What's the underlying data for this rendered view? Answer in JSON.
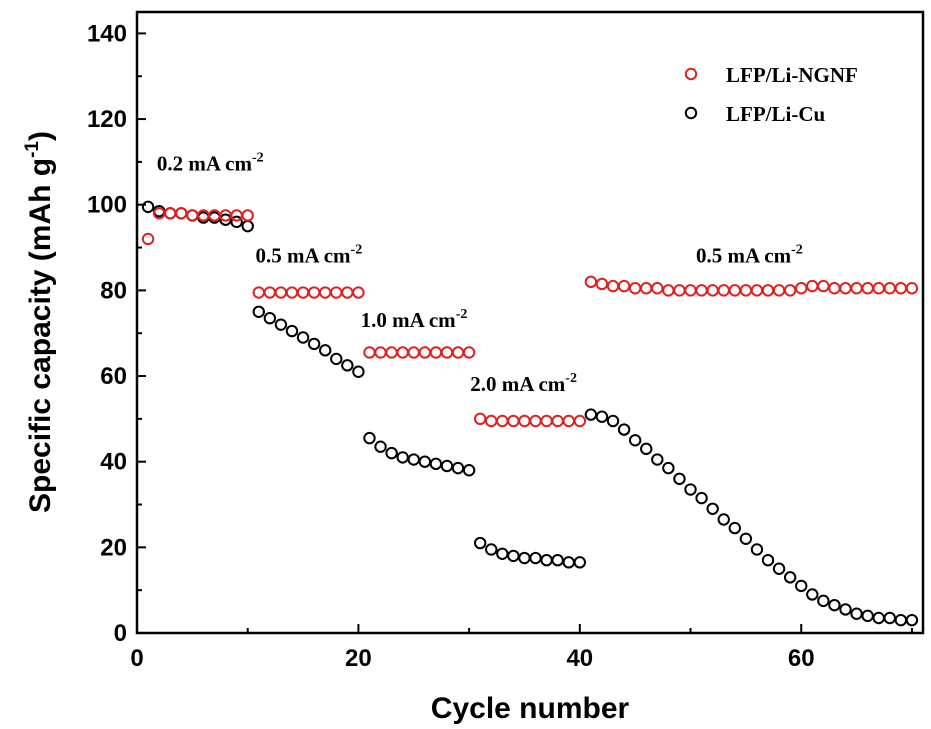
{
  "chart_data": {
    "type": "scatter",
    "title": "",
    "xlabel": "Cycle number",
    "ylabel_main": "Specific capacity (mAh g",
    "ylabel_sup": "-1",
    "ylabel_close": ")",
    "xlim": [
      0,
      71
    ],
    "ylim": [
      0,
      145
    ],
    "xticks": [
      0,
      20,
      40,
      60
    ],
    "yticks": [
      0,
      20,
      40,
      60,
      80,
      100,
      120,
      140
    ],
    "grid": false,
    "legend_position": "top-right",
    "series": [
      {
        "name": "LFP/Li-NGNF",
        "color": "#e02020",
        "marker": "open-circle",
        "x": [
          1,
          2,
          3,
          4,
          5,
          6,
          7,
          8,
          9,
          10,
          11,
          12,
          13,
          14,
          15,
          16,
          17,
          18,
          19,
          20,
          21,
          22,
          23,
          24,
          25,
          26,
          27,
          28,
          29,
          30,
          31,
          32,
          33,
          34,
          35,
          36,
          37,
          38,
          39,
          40,
          41,
          42,
          43,
          44,
          45,
          46,
          47,
          48,
          49,
          50,
          51,
          52,
          53,
          54,
          55,
          56,
          57,
          58,
          59,
          60,
          61,
          62,
          63,
          64,
          65,
          66,
          67,
          68,
          69,
          70
        ],
        "y": [
          92,
          98,
          98,
          98,
          97.5,
          97.5,
          97.5,
          97.5,
          97.5,
          97.5,
          79.5,
          79.5,
          79.5,
          79.5,
          79.5,
          79.5,
          79.5,
          79.5,
          79.5,
          79.5,
          65.5,
          65.5,
          65.5,
          65.5,
          65.5,
          65.5,
          65.5,
          65.5,
          65.5,
          65.5,
          50,
          49.5,
          49.5,
          49.5,
          49.5,
          49.5,
          49.5,
          49.5,
          49.5,
          49.5,
          82,
          81.5,
          81,
          81,
          80.5,
          80.5,
          80.5,
          80,
          80,
          80,
          80,
          80,
          80,
          80,
          80,
          80,
          80,
          80,
          80,
          80.5,
          81,
          81,
          80.5,
          80.5,
          80.5,
          80.5,
          80.5,
          80.5,
          80.5,
          80.5
        ]
      },
      {
        "name": "LFP/Li-Cu",
        "color": "#000000",
        "marker": "open-circle",
        "x": [
          1,
          2,
          3,
          4,
          5,
          6,
          7,
          8,
          9,
          10,
          11,
          12,
          13,
          14,
          15,
          16,
          17,
          18,
          19,
          20,
          21,
          22,
          23,
          24,
          25,
          26,
          27,
          28,
          29,
          30,
          31,
          32,
          33,
          34,
          35,
          36,
          37,
          38,
          39,
          40,
          41,
          42,
          43,
          44,
          45,
          46,
          47,
          48,
          49,
          50,
          51,
          52,
          53,
          54,
          55,
          56,
          57,
          58,
          59,
          60,
          61,
          62,
          63,
          64,
          65,
          66,
          67,
          68,
          69,
          70
        ],
        "y": [
          99.5,
          98.5,
          98,
          98,
          97.5,
          97,
          97,
          96.5,
          96,
          95,
          75,
          73.5,
          72,
          70.5,
          69,
          67.5,
          66,
          64,
          62.5,
          61,
          45.5,
          43.5,
          42,
          41,
          40.5,
          40,
          39.5,
          39,
          38.5,
          38,
          21,
          19.5,
          18.5,
          18,
          17.5,
          17.5,
          17,
          17,
          16.5,
          16.5,
          51,
          50.5,
          49.5,
          47.5,
          45,
          43,
          40.5,
          38.5,
          36,
          33.5,
          31.5,
          29,
          26.5,
          24.5,
          22,
          19.5,
          17,
          15,
          13,
          11,
          9,
          7.5,
          6.5,
          5.5,
          4.5,
          4,
          3.5,
          3.5,
          3,
          3
        ]
      }
    ],
    "annotations": [
      {
        "main": "0.2 mA cm",
        "sup": "-2",
        "x": 1.8,
        "y": 108
      },
      {
        "main": "0.5 mA cm",
        "sup": "-2",
        "x": 10.7,
        "y": 86.5
      },
      {
        "main": "1.0 mA cm",
        "sup": "-2",
        "x": 20.2,
        "y": 71.5
      },
      {
        "main": "2.0 mA cm",
        "sup": "-2",
        "x": 30.1,
        "y": 56.5
      },
      {
        "main": "0.5 mA cm",
        "sup": "-2",
        "x": 50.5,
        "y": 86.5
      }
    ]
  }
}
